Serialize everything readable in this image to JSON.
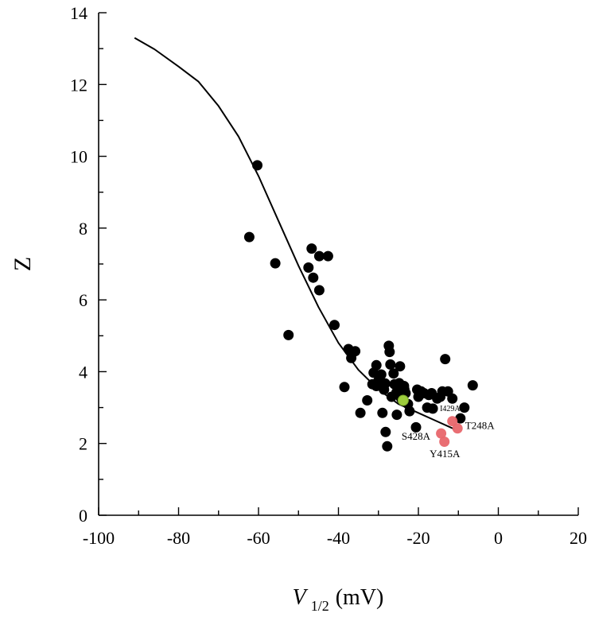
{
  "chart_data": {
    "type": "scatter",
    "title": "",
    "xlabel": "V",
    "xlabel_sub": "1/2",
    "xlabel_unit": "(mV)",
    "ylabel": "Z",
    "xlim": [
      -100,
      20
    ],
    "ylim": [
      0,
      14
    ],
    "xticks": [
      -100,
      -80,
      -60,
      -40,
      -20,
      0,
      20
    ],
    "yticks": [
      0,
      2,
      4,
      6,
      8,
      10,
      12,
      14
    ],
    "grid": false,
    "legend": "none",
    "colors": {
      "points": "#000000",
      "highlight": "#e8666b",
      "reference": "#9dcd3c",
      "curve": "#000000"
    },
    "curve": {
      "x": [
        -91,
        -86,
        -80,
        -75,
        -70,
        -65,
        -60,
        -55,
        -50,
        -45,
        -40,
        -35,
        -30,
        -25,
        -20,
        -15,
        -11
      ],
      "y": [
        13.3,
        12.98,
        12.5,
        12.08,
        11.4,
        10.55,
        9.45,
        8.2,
        6.95,
        5.8,
        4.8,
        4.05,
        3.5,
        3.1,
        2.85,
        2.6,
        2.4
      ]
    },
    "series": [
      {
        "style": "black",
        "x": [
          -60.3,
          -62.3,
          -55.8,
          -52.5,
          -47.5,
          -46.7,
          -46.3,
          -44.8,
          -44.8,
          -42.6,
          -41.0,
          -37.5,
          -36.8,
          -35.8,
          -37.2,
          -38.5,
          -34.5,
          -32.8,
          -31.2,
          -30.5,
          -31.5,
          -30.5,
          -30.0,
          -29.3,
          -28.6,
          -28.3,
          -27.4,
          -27.2,
          -27.0,
          -26.7,
          -26.2,
          -26.0,
          -25.5,
          -25.2,
          -25.0,
          -24.8,
          -24.6,
          -24.3,
          -24.0,
          -23.6,
          -23.2,
          -22.6,
          -22.2,
          -20.6,
          -20.3,
          -20.0,
          -19.3,
          -18.6,
          -17.8,
          -17.4,
          -16.7,
          -16.4,
          -15.3,
          -14.5,
          -14.0,
          -13.3,
          -12.6,
          -11.5,
          -9.5,
          -8.5,
          -6.4,
          -28.2,
          -25.4,
          -29.0,
          -27.8,
          -23.5
        ],
        "y": [
          9.75,
          7.75,
          7.02,
          5.02,
          6.9,
          7.43,
          6.62,
          6.27,
          7.22,
          7.22,
          5.3,
          4.63,
          4.38,
          4.57,
          4.58,
          3.57,
          2.85,
          3.2,
          3.97,
          3.6,
          3.65,
          4.18,
          3.75,
          3.92,
          3.5,
          3.67,
          4.72,
          4.55,
          4.2,
          3.3,
          3.95,
          3.65,
          3.42,
          3.55,
          3.6,
          3.68,
          4.15,
          3.25,
          3.5,
          3.6,
          3.4,
          3.1,
          2.9,
          2.45,
          3.5,
          3.3,
          3.45,
          3.4,
          3.0,
          3.35,
          3.4,
          2.97,
          3.25,
          3.3,
          3.45,
          4.35,
          3.45,
          3.25,
          2.7,
          3.0,
          3.62,
          2.32,
          2.8,
          2.85,
          1.92,
          3.5
        ]
      },
      {
        "style": "reference",
        "x": [
          -23.8
        ],
        "y": [
          3.2
        ]
      },
      {
        "style": "highlight",
        "x": [
          -11.5,
          -10.2,
          -14.3,
          -13.5
        ],
        "y": [
          2.62,
          2.42,
          2.28,
          2.05
        ],
        "labels": [
          "I429A",
          "T248A",
          "S428A",
          "Y415A"
        ]
      }
    ],
    "annotations": [
      {
        "text": "I429A",
        "x": -14.6,
        "y": 2.9
      },
      {
        "text": "T248A",
        "x": -8.3,
        "y": 2.4
      },
      {
        "text": "S428A",
        "x": -24.2,
        "y": 2.1
      },
      {
        "text": "Y415A",
        "x": -17.2,
        "y": 1.62
      }
    ]
  }
}
